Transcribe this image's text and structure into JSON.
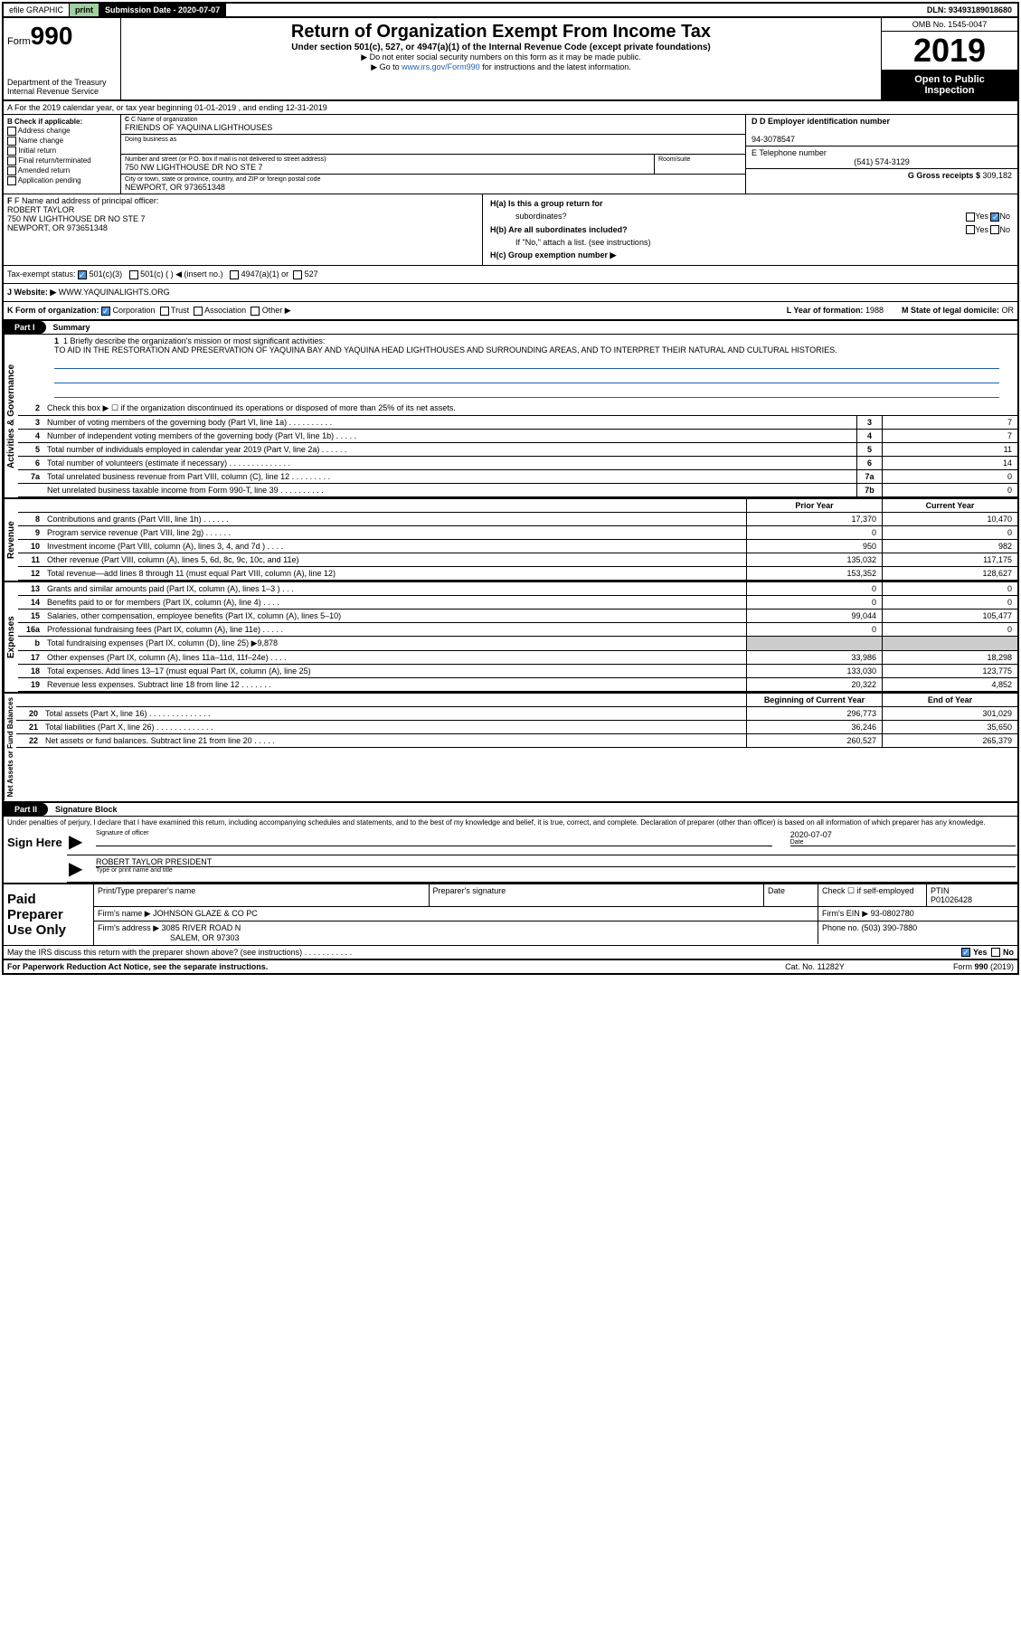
{
  "topbar": {
    "efile": "efile GRAPHIC",
    "print": "print",
    "sub_label": "Submission Date - 2020-07-07",
    "dln": "DLN: 93493189018680"
  },
  "header": {
    "form_prefix": "Form",
    "form_num": "990",
    "dept": "Department of the Treasury",
    "irs": "Internal Revenue Service",
    "title": "Return of Organization Exempt From Income Tax",
    "subtitle": "Under section 501(c), 527, or 4947(a)(1) of the Internal Revenue Code (except private foundations)",
    "instr1": "▶ Do not enter social security numbers on this form as it may be made public.",
    "instr2_pre": "▶ Go to ",
    "instr2_link": "www.irs.gov/Form990",
    "instr2_post": " for instructions and the latest information.",
    "omb": "OMB No. 1545-0047",
    "year": "2019",
    "open1": "Open to Public",
    "open2": "Inspection"
  },
  "section_a": "A For the 2019 calendar year, or tax year beginning 01-01-2019    , and ending 12-31-2019",
  "box_b": {
    "hdr": "B Check if applicable:",
    "items": [
      "Address change",
      "Name change",
      "Initial return",
      "Final return/terminated",
      "Amended return",
      "Application pending"
    ]
  },
  "box_c": {
    "name_lbl": "C Name of organization",
    "name": "FRIENDS OF YAQUINA LIGHTHOUSES",
    "dba_lbl": "Doing business as",
    "addr_lbl": "Number and street (or P.O. box if mail is not delivered to street address)",
    "addr": "750 NW LIGHTHOUSE DR NO STE 7",
    "room_lbl": "Room/suite",
    "city_lbl": "City or town, state or province, country, and ZIP or foreign postal code",
    "city": "NEWPORT, OR  973651348"
  },
  "box_d": {
    "ein_lbl": "D Employer identification number",
    "ein": "94-3078547",
    "tel_lbl": "E Telephone number",
    "tel": "(541) 574-3129",
    "gross_lbl": "G Gross receipts $ ",
    "gross": "309,182"
  },
  "box_f": {
    "lbl": "F Name and address of principal officer:",
    "name": "ROBERT TAYLOR",
    "addr1": "750 NW LIGHTHOUSE DR NO STE 7",
    "addr2": "NEWPORT, OR  973651348"
  },
  "box_h": {
    "ha": "H(a)  Is this a group return for",
    "ha2": "subordinates?",
    "hb": "H(b)  Are all subordinates included?",
    "hb_note": "If \"No,\" attach a list. (see instructions)",
    "hc": "H(c)  Group exemption number ▶",
    "yes": "Yes",
    "no": "No"
  },
  "tax_status": {
    "lbl": "Tax-exempt status:",
    "opts": [
      "501(c)(3)",
      "501(c) (  ) ◀ (insert no.)",
      "4947(a)(1) or",
      "527"
    ]
  },
  "website": {
    "lbl": "J   Website: ▶",
    "val": "WWW.YAQUINALIGHTS.ORG"
  },
  "row_k": {
    "lbl": "K Form of organization:",
    "opts": [
      "Corporation",
      "Trust",
      "Association",
      "Other ▶"
    ],
    "l_lbl": "L Year of formation: ",
    "l_val": "1988",
    "m_lbl": "M State of legal domicile: ",
    "m_val": "OR"
  },
  "part1": {
    "num": "Part I",
    "title": "Summary"
  },
  "mission": {
    "lbl": "1  Briefly describe the organization's mission or most significant activities:",
    "text": "TO AID IN THE RESTORATION AND PRESERVATION OF YAQUINA BAY AND YAQUINA HEAD LIGHTHOUSES AND SURROUNDING AREAS, AND TO INTERPRET THEIR NATURAL AND CULTURAL HISTORIES."
  },
  "line2": "Check this box ▶ ☐  if the organization discontinued its operations or disposed of more than 25% of its net assets.",
  "gov_rows": [
    {
      "n": "3",
      "t": "Number of voting members of the governing body (Part VI, line 1a)  .  .  .  .  .  .  .  .  .  .",
      "b": "3",
      "v": "7"
    },
    {
      "n": "4",
      "t": "Number of independent voting members of the governing body (Part VI, line 1b)  .  .  .  .  .",
      "b": "4",
      "v": "7"
    },
    {
      "n": "5",
      "t": "Total number of individuals employed in calendar year 2019 (Part V, line 2a)  .  .  .  .  .  .",
      "b": "5",
      "v": "11"
    },
    {
      "n": "6",
      "t": "Total number of volunteers (estimate if necessary)    .  .  .  .  .  .  .  .  .  .  .  .  .  .",
      "b": "6",
      "v": "14"
    },
    {
      "n": "7a",
      "t": "Total unrelated business revenue from Part VIII, column (C), line 12  .  .  .  .  .  .  .  .  .",
      "b": "7a",
      "v": "0"
    },
    {
      "n": "",
      "t": "Net unrelated business taxable income from Form 990-T, line 39  .  .  .  .  .  .  .  .  .  .",
      "b": "7b",
      "v": "0"
    }
  ],
  "col_hdr": {
    "prior": "Prior Year",
    "current": "Current Year"
  },
  "rev_rows": [
    {
      "n": "8",
      "t": "Contributions and grants (Part VIII, line 1h)  .  .  .  .  .  .",
      "p": "17,370",
      "c": "10,470"
    },
    {
      "n": "9",
      "t": "Program service revenue (Part VIII, line 2g)  .  .  .  .  .  .",
      "p": "0",
      "c": "0"
    },
    {
      "n": "10",
      "t": "Investment income (Part VIII, column (A), lines 3, 4, and 7d )  .  .  .  .",
      "p": "950",
      "c": "982"
    },
    {
      "n": "11",
      "t": "Other revenue (Part VIII, column (A), lines 5, 6d, 8c, 9c, 10c, and 11e)",
      "p": "135,032",
      "c": "117,175"
    },
    {
      "n": "12",
      "t": "Total revenue—add lines 8 through 11 (must equal Part VIII, column (A), line 12)",
      "p": "153,352",
      "c": "128,627"
    }
  ],
  "exp_rows": [
    {
      "n": "13",
      "t": "Grants and similar amounts paid (Part IX, column (A), lines 1–3 )  .  .  .",
      "p": "0",
      "c": "0"
    },
    {
      "n": "14",
      "t": "Benefits paid to or for members (Part IX, column (A), line 4)  .  .  .  .",
      "p": "0",
      "c": "0"
    },
    {
      "n": "15",
      "t": "Salaries, other compensation, employee benefits (Part IX, column (A), lines 5–10)",
      "p": "99,044",
      "c": "105,477"
    },
    {
      "n": "16a",
      "t": "Professional fundraising fees (Part IX, column (A), line 11e)  .  .  .  .  .",
      "p": "0",
      "c": "0"
    },
    {
      "n": "b",
      "t": "Total fundraising expenses (Part IX, column (D), line 25) ▶9,878",
      "grey": true
    },
    {
      "n": "17",
      "t": "Other expenses (Part IX, column (A), lines 11a–11d, 11f–24e)  .  .  .  .",
      "p": "33,986",
      "c": "18,298"
    },
    {
      "n": "18",
      "t": "Total expenses. Add lines 13–17 (must equal Part IX, column (A), line 25)",
      "p": "133,030",
      "c": "123,775"
    },
    {
      "n": "19",
      "t": "Revenue less expenses. Subtract line 18 from line 12  .  .  .  .  .  .  .",
      "p": "20,322",
      "c": "4,852"
    }
  ],
  "net_hdr": {
    "begin": "Beginning of Current Year",
    "end": "End of Year"
  },
  "net_rows": [
    {
      "n": "20",
      "t": "Total assets (Part X, line 16)  .  .  .  .  .  .  .  .  .  .  .  .  .  .",
      "p": "296,773",
      "c": "301,029"
    },
    {
      "n": "21",
      "t": "Total liabilities (Part X, line 26)  .  .  .  .  .  .  .  .  .  .  .  .  .",
      "p": "36,246",
      "c": "35,650"
    },
    {
      "n": "22",
      "t": "Net assets or fund balances. Subtract line 21 from line 20  .  .  .  .  .",
      "p": "260,527",
      "c": "265,379"
    }
  ],
  "side_labels": {
    "gov": "Activities & Governance",
    "rev": "Revenue",
    "exp": "Expenses",
    "net": "Net Assets or Fund Balances"
  },
  "part2": {
    "num": "Part II",
    "title": "Signature Block"
  },
  "sig": {
    "decl": "Under penalties of perjury, I declare that I have examined this return, including accompanying schedules and statements, and to the best of my knowledge and belief, it is true, correct, and complete. Declaration of preparer (other than officer) is based on all information of which preparer has any knowledge.",
    "sign_here": "Sign Here",
    "sig_lbl": "Signature of officer",
    "date_lbl": "Date",
    "date": "2020-07-07",
    "name": "ROBERT TAYLOR PRESIDENT",
    "name_lbl": "Type or print name and title"
  },
  "prep": {
    "title": "Paid Preparer Use Only",
    "print_lbl": "Print/Type preparer's name",
    "sig_lbl": "Preparer's signature",
    "date_lbl": "Date",
    "check_lbl": "Check ☐ if self-employed",
    "ptin_lbl": "PTIN",
    "ptin": "P01026428",
    "firm_name_lbl": "Firm's name    ▶",
    "firm_name": "JOHNSON GLAZE & CO PC",
    "firm_ein_lbl": "Firm's EIN ▶",
    "firm_ein": "93-0802780",
    "firm_addr_lbl": "Firm's address ▶",
    "firm_addr1": "3085 RIVER ROAD N",
    "firm_addr2": "SALEM, OR  97303",
    "phone_lbl": "Phone no. ",
    "phone": "(503) 390-7880"
  },
  "may_discuss": "May the IRS discuss this return with the preparer shown above? (see instructions)  .  .  .  .  .  .  .  .  .  .  .",
  "footer": {
    "pra": "For Paperwork Reduction Act Notice, see the separate instructions.",
    "cat": "Cat. No. 11282Y",
    "form": "Form 990 (2019)"
  }
}
